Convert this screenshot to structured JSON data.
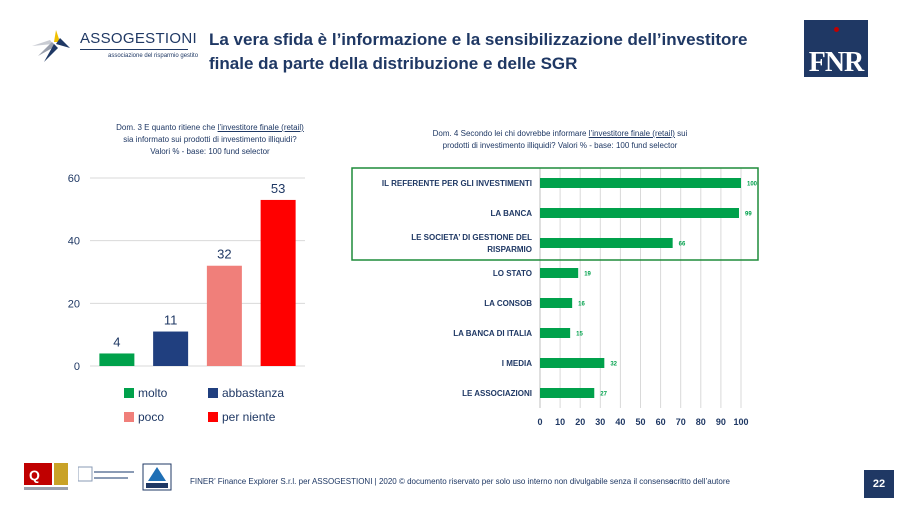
{
  "header": {
    "brand_name": "ASSOGESTIONI",
    "brand_tagline": "associazione del risparmio gestito",
    "title": "La vera sfida è l’informazione e la sensibilizzazione dell’investitore finale da parte della distribuzione e delle SGR",
    "right_logo": "FNR"
  },
  "left_question": {
    "prefix": "Dom. 3 E quanto ritiene che",
    "underlined": "l’investitore finale (retail)",
    "line2": "sia informato sui prodotti di investimento illiquidi?",
    "line3": "Valori % - base: 100 fund selector"
  },
  "right_question": {
    "prefix": "Dom. 4 Secondo lei chi dovrebbe informare",
    "underlined": "l’investitore finale (retail)",
    "suffix": " sui",
    "line2": "prodotti di investimento illiquidi? Valori % - base: 100 fund selector"
  },
  "chart_data": [
    {
      "type": "bar",
      "categories": [
        "molto",
        "abbastanza",
        "poco",
        "per niente"
      ],
      "values": [
        4,
        11,
        32,
        53
      ],
      "colors": [
        "#00a14b",
        "#203f7f",
        "#f07f7a",
        "#ff0000"
      ],
      "y_ticks": [
        "0",
        "20",
        "40",
        "60"
      ],
      "ylim": [
        0,
        60
      ],
      "legend": [
        "molto",
        "abbastanza",
        "poco",
        "per niente"
      ],
      "grid": true
    },
    {
      "type": "bar",
      "orientation": "horizontal",
      "categories": [
        "IL REFERENTE PER GLI INVESTIMENTI",
        "LA BANCA",
        "LE SOCIETA’ DI GESTIONE DEL RISPARMIO",
        "LO STATO",
        "LA CONSOB",
        "LA BANCA DI ITALIA",
        "I MEDIA",
        "LE ASSOCIAZIONI"
      ],
      "label_lines": [
        [
          "IL REFERENTE PER GLI INVESTIMENTI"
        ],
        [
          "LA BANCA"
        ],
        [
          "LE SOCIETA’ DI GESTIONE DEL",
          "RISPARMIO"
        ],
        [
          "LO STATO"
        ],
        [
          "LA CONSOB"
        ],
        [
          "LA BANCA DI ITALIA"
        ],
        [
          "I MEDIA"
        ],
        [
          "LE ASSOCIAZIONI"
        ]
      ],
      "values": [
        100,
        99,
        66,
        19,
        16,
        15,
        32,
        27
      ],
      "color": "#00a14b",
      "x_ticks": [
        "0",
        "10",
        "20",
        "30",
        "40",
        "50",
        "60",
        "70",
        "80",
        "90",
        "100"
      ],
      "xlim": [
        0,
        100
      ],
      "highlight_top": 3,
      "highlight_color": "#1e8c3a",
      "grid": true
    }
  ],
  "footer": {
    "text": "FINER’ Finance Explorer S.r.l. per ASSOGESTIONI | 2020 © documento riservato per solo uso interno non divulgabile senza il consenso",
    "text_end": "scritto dell’autore",
    "page": "22"
  },
  "bottom_logos": {
    "logo1": "ASSIRM",
    "logo2": "CONFINDUSTRIA",
    "logo3": "CERT"
  }
}
